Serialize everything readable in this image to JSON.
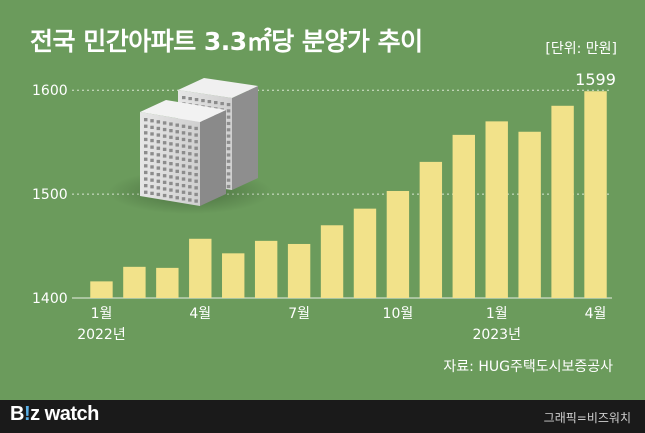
{
  "title": "전국 민간아파트 3.3㎡당 분양가 추이",
  "unit": "[단위: 만원]",
  "source": "자료: HUG주택도시보증공사",
  "footer": {
    "brand_prefix": "B",
    "brand_bang": "!",
    "brand_z": "z",
    "brand_suffix": " watch",
    "credit": "그래픽=비즈워치"
  },
  "colors": {
    "background": "#6b9b5c",
    "bar": "#f2e28a",
    "text": "#ffffff"
  },
  "icon": "apartment-building-icon",
  "chart_data": {
    "type": "bar",
    "title": "전국 민간아파트 3.3㎡당 분양가 추이",
    "unit": "[단위: 만원]",
    "categories": [
      "2022-01",
      "2022-02",
      "2022-03",
      "2022-04",
      "2022-05",
      "2022-06",
      "2022-07",
      "2022-08",
      "2022-09",
      "2022-10",
      "2022-11",
      "2022-12",
      "2023-01",
      "2023-02",
      "2023-03",
      "2023-04"
    ],
    "x_tick_labels": [
      {
        "index": 0,
        "label": "1월",
        "year": "2022년"
      },
      {
        "index": 3,
        "label": "4월"
      },
      {
        "index": 6,
        "label": "7월"
      },
      {
        "index": 9,
        "label": "10월"
      },
      {
        "index": 12,
        "label": "1월",
        "year": "2023년"
      },
      {
        "index": 15,
        "label": "4월"
      }
    ],
    "values": [
      1416,
      1430,
      1429,
      1457,
      1443,
      1455,
      1452,
      1470,
      1486,
      1503,
      1531,
      1557,
      1570,
      1560,
      1585,
      1599
    ],
    "data_labels": [
      {
        "index": 15,
        "text": "1599"
      }
    ],
    "yticks": [
      1400,
      1500,
      1600
    ],
    "ylim": [
      1400,
      1605
    ],
    "grid": true
  }
}
